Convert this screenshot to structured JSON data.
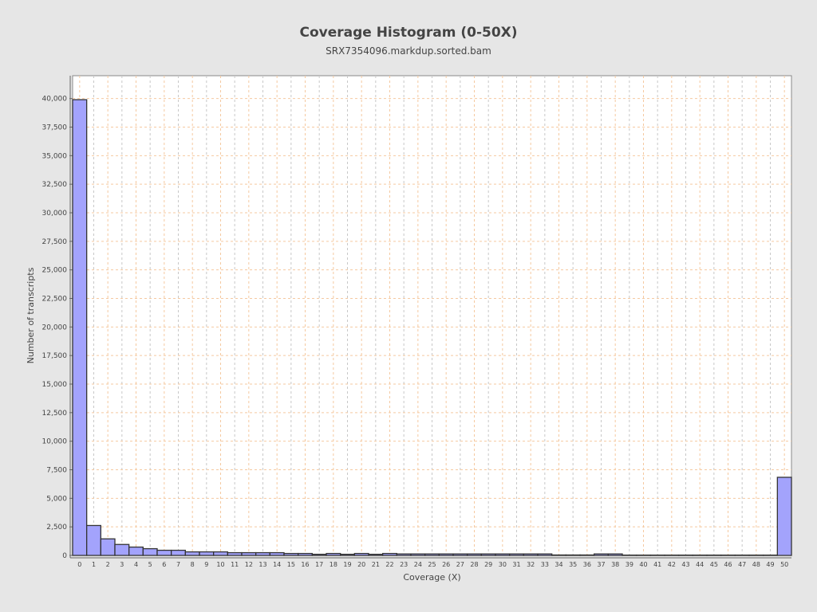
{
  "chart_data": {
    "type": "bar",
    "title": "Coverage Histogram (0-50X)",
    "subtitle": "SRX7354096.markdup.sorted.bam",
    "xlabel": "Coverage (X)",
    "ylabel": "Number of transcripts",
    "ylim": [
      0,
      42000
    ],
    "yticks": [
      0,
      2500,
      5000,
      7500,
      10000,
      12500,
      15000,
      17500,
      20000,
      22500,
      25000,
      27500,
      30000,
      32500,
      35000,
      37500,
      40000
    ],
    "ytick_labels": [
      "0",
      "2,500",
      "5,000",
      "7,500",
      "10,000",
      "12,500",
      "15,000",
      "17,500",
      "20,000",
      "22,500",
      "25,000",
      "27,500",
      "30,000",
      "32,500",
      "35,000",
      "37,500",
      "40,000"
    ],
    "categories": [
      "0",
      "1",
      "2",
      "3",
      "4",
      "5",
      "6",
      "7",
      "8",
      "9",
      "10",
      "11",
      "12",
      "13",
      "14",
      "15",
      "16",
      "17",
      "18",
      "19",
      "20",
      "21",
      "22",
      "23",
      "24",
      "25",
      "26",
      "27",
      "28",
      "29",
      "30",
      "31",
      "32",
      "33",
      "34",
      "35",
      "36",
      "37",
      "38",
      "39",
      "40",
      "41",
      "42",
      "43",
      "44",
      "45",
      "46",
      "47",
      "48",
      "49",
      "50"
    ],
    "values": [
      39900,
      2620,
      1450,
      960,
      730,
      590,
      450,
      450,
      310,
      310,
      310,
      240,
      240,
      240,
      240,
      170,
      170,
      100,
      170,
      100,
      170,
      100,
      170,
      130,
      130,
      130,
      130,
      130,
      130,
      130,
      130,
      130,
      130,
      130,
      40,
      40,
      40,
      130,
      130,
      30,
      30,
      30,
      30,
      30,
      30,
      30,
      30,
      30,
      30,
      30,
      6840
    ],
    "grid": true,
    "colors": {
      "bar": "#a3a3fc",
      "bar_edge": "#333333",
      "grid_x": "#c8c8c8",
      "grid_y": "#f5c9a0",
      "plot_bg": "#ffffff",
      "page_bg": "#e6e6e6"
    }
  }
}
